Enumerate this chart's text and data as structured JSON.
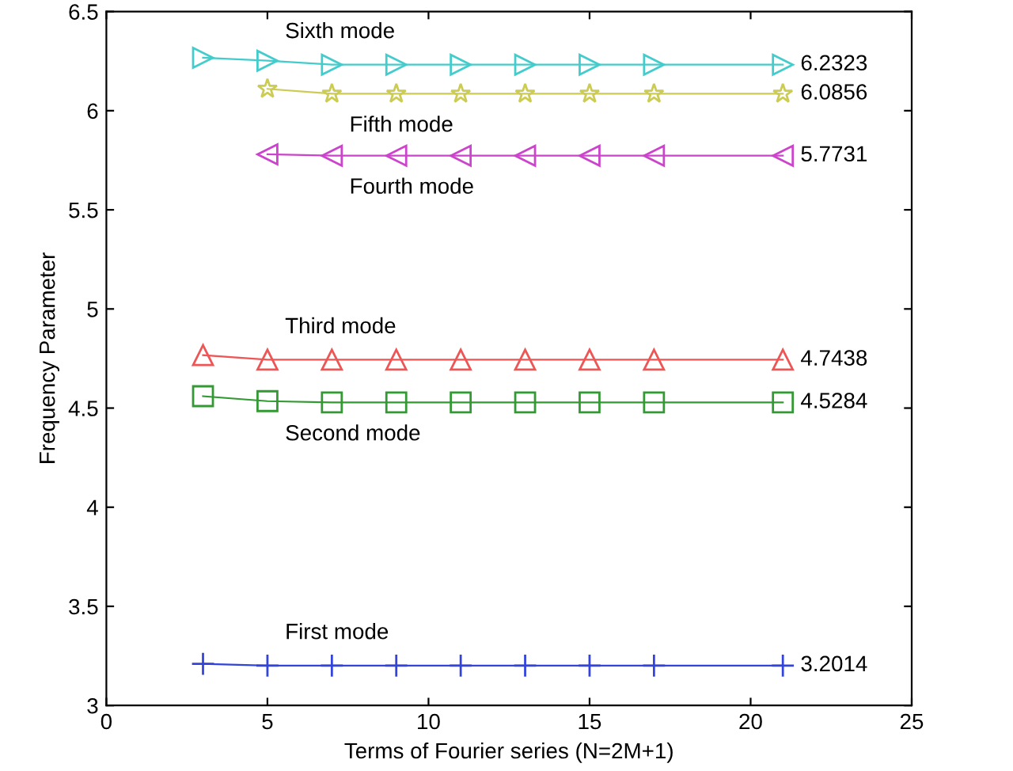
{
  "chart_data": {
    "type": "line",
    "xlabel": "Terms of Fourier series (N=2M+1)",
    "ylabel": "Frequency Parameter",
    "xlim": [
      0,
      25
    ],
    "xticks": [
      0,
      5,
      10,
      15,
      20,
      25
    ],
    "ylim": [
      3,
      6.5
    ],
    "yticks": [
      3,
      3.5,
      4,
      4.5,
      5,
      5.5,
      6,
      6.5
    ],
    "grid": false,
    "legend": false,
    "line_style": "solid",
    "series": [
      {
        "name": "First mode",
        "color": "#3344dd",
        "marker": "cross",
        "x": [
          3,
          5,
          7,
          9,
          11,
          13,
          15,
          17,
          21
        ],
        "values": [
          3.21,
          3.2014,
          3.2014,
          3.2014,
          3.2014,
          3.2014,
          3.2014,
          3.2014,
          3.2014
        ],
        "value_labels": [
          null,
          null,
          null,
          null,
          null,
          null,
          null,
          null,
          "3.2014"
        ]
      },
      {
        "name": "Second mode",
        "color": "#339933",
        "marker": "square",
        "x": [
          3,
          5,
          7,
          9,
          11,
          13,
          15,
          17,
          21
        ],
        "values": [
          4.56,
          4.535,
          4.5284,
          4.5284,
          4.5284,
          4.5284,
          4.5284,
          4.5284,
          4.5284
        ],
        "value_labels": [
          null,
          null,
          null,
          null,
          null,
          null,
          null,
          null,
          "4.5284"
        ]
      },
      {
        "name": "Third mode",
        "color": "#ee5555",
        "marker": "triangle",
        "x": [
          3,
          5,
          7,
          9,
          11,
          13,
          15,
          17,
          21
        ],
        "values": [
          4.767,
          4.7438,
          4.7438,
          4.7438,
          4.7438,
          4.7438,
          4.7438,
          4.7438,
          4.7438
        ],
        "value_labels": [
          null,
          null,
          null,
          null,
          null,
          null,
          null,
          null,
          "4.7438"
        ]
      },
      {
        "name": "Fourth mode",
        "color": "#cc44cc",
        "marker": "triangle_left",
        "x": [
          5,
          7,
          9,
          11,
          13,
          15,
          17,
          21
        ],
        "values": [
          5.78,
          5.7731,
          5.7731,
          5.7731,
          5.7731,
          5.7731,
          5.7731,
          5.7731
        ],
        "value_labels": [
          null,
          null,
          null,
          null,
          null,
          null,
          null,
          "5.7731"
        ]
      },
      {
        "name": "Fifth mode",
        "color": "#cccc55",
        "marker": "star",
        "x": [
          5,
          7,
          9,
          11,
          13,
          15,
          17,
          21
        ],
        "values": [
          6.11,
          6.0856,
          6.0856,
          6.0856,
          6.0856,
          6.0856,
          6.0856,
          6.0856
        ],
        "value_labels": [
          null,
          null,
          null,
          null,
          null,
          null,
          null,
          "6.0856"
        ]
      },
      {
        "name": "Sixth mode",
        "color": "#44cccc",
        "marker": "triangle_right",
        "x": [
          3,
          5,
          7,
          9,
          11,
          13,
          15,
          17,
          21
        ],
        "values": [
          6.267,
          6.252,
          6.2323,
          6.2323,
          6.2323,
          6.2323,
          6.2323,
          6.2323,
          6.2323
        ],
        "value_labels": [
          null,
          null,
          null,
          null,
          null,
          null,
          null,
          null,
          "6.2323"
        ]
      }
    ]
  }
}
